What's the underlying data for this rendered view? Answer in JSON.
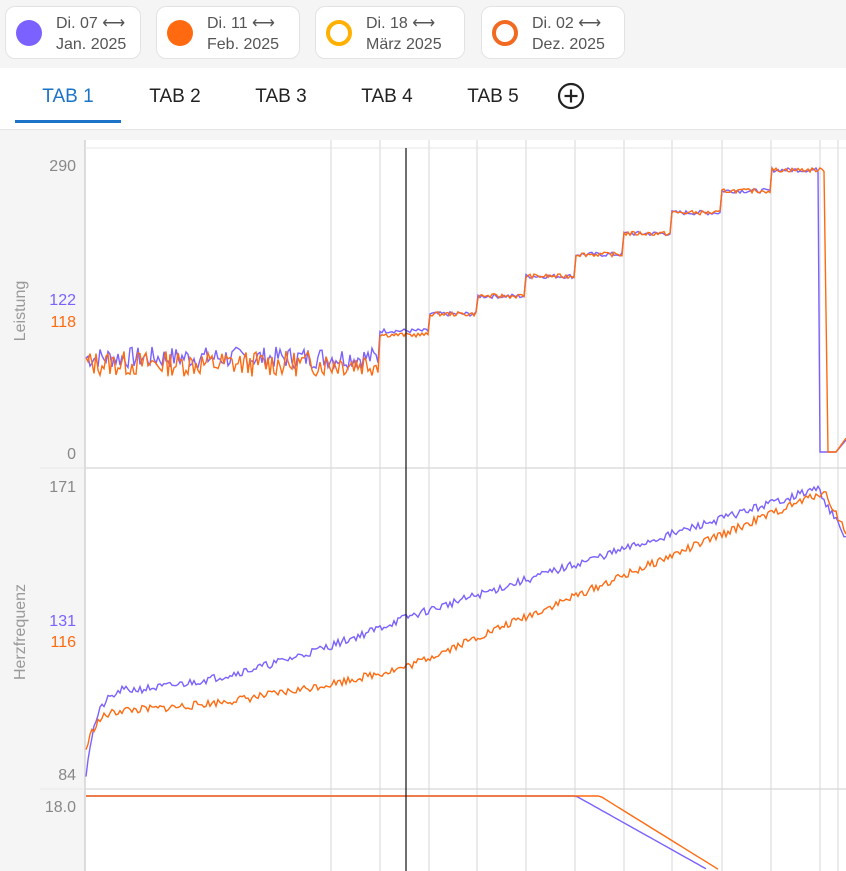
{
  "legend": [
    {
      "line1": "Di. 07 ⟷",
      "line2": "Jan. 2025",
      "color": "#7b61ff",
      "style": "filled"
    },
    {
      "line1": "Di. 11 ⟷",
      "line2": "Feb. 2025",
      "color": "#ff6a10",
      "style": "filled"
    },
    {
      "line1": "Di. 18 ⟷",
      "line2": "März 2025",
      "color": "#ffb000",
      "style": "ring"
    },
    {
      "line1": "Di. 02 ⟷",
      "line2": "Dez. 2025",
      "color": "#f26a21",
      "style": "ring"
    }
  ],
  "tabs": [
    {
      "label": "TAB 1",
      "active": true
    },
    {
      "label": "TAB 2",
      "active": false
    },
    {
      "label": "TAB 3",
      "active": false
    },
    {
      "label": "TAB 4",
      "active": false
    },
    {
      "label": "TAB 5",
      "active": false
    }
  ],
  "add_tab_icon": "plus-circle-icon",
  "colors": {
    "purple": "#7b61ff",
    "orange": "#ff6a10",
    "accent": "#1a73c7"
  },
  "chart_data": [
    {
      "type": "line",
      "ylabel": "Leistung",
      "ylim": [
        0,
        290
      ],
      "y_ticks": [
        "290",
        "0"
      ],
      "cursor_values": [
        {
          "series": "Di. 07 Jan. 2025",
          "value": "122"
        },
        {
          "series": "Di. 11 Feb. 2025",
          "value": "118"
        }
      ],
      "series": [
        {
          "name": "Di. 07 Jan. 2025",
          "shape": "steps",
          "steps": [
            95,
            122,
            139,
            157,
            177,
            199,
            220,
            241,
            263,
            284
          ],
          "drop_to_zero": true
        },
        {
          "name": "Di. 11 Feb. 2025",
          "shape": "steps",
          "steps": [
            89,
            118,
            139,
            157,
            177,
            199,
            220,
            241,
            263,
            284
          ],
          "drop_to_zero": true
        }
      ]
    },
    {
      "type": "line",
      "ylabel": "Herzfrequenz",
      "ylim": [
        84,
        171
      ],
      "y_ticks": [
        "171",
        "84"
      ],
      "cursor_values": [
        {
          "series": "Di. 07 Jan. 2025",
          "value": "131"
        },
        {
          "series": "Di. 11 Feb. 2025",
          "value": "116"
        }
      ],
      "series": [
        {
          "name": "Di. 07 Jan. 2025",
          "shape": "rising",
          "start": 84,
          "plateau": 109,
          "cursor": 131,
          "peak": 170
        },
        {
          "name": "Di. 11 Feb. 2025",
          "shape": "rising",
          "start": 91,
          "plateau": 103,
          "cursor": 116,
          "peak": 169
        }
      ]
    },
    {
      "type": "line",
      "ylabel": "",
      "y_ticks": [
        "18.0"
      ],
      "series": [
        {
          "name": "Di. 07 Jan. 2025",
          "flat": 18.0
        },
        {
          "name": "Di. 11 Feb. 2025",
          "flat": 18.0
        }
      ]
    }
  ]
}
